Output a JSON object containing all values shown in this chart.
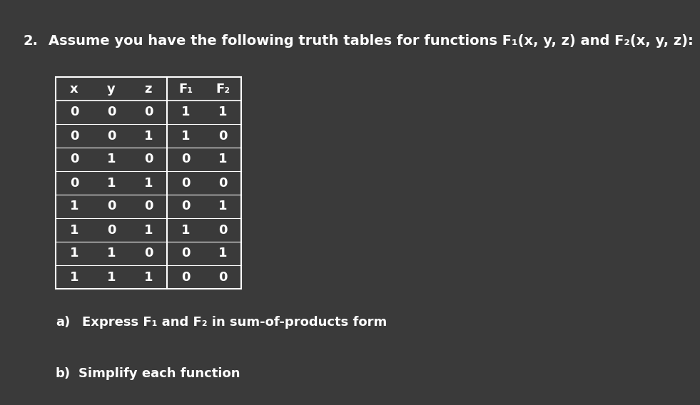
{
  "background_color": "#3a3a3a",
  "text_color": "#ffffff",
  "title_number": "2.",
  "title_text": "Assume you have the following truth tables for functions F₁(x, y, z) and F₂(x, y, z):",
  "headers": [
    "x",
    "y",
    "z",
    "F₁",
    "F₂"
  ],
  "rows": [
    [
      0,
      0,
      0,
      1,
      1
    ],
    [
      0,
      0,
      1,
      1,
      0
    ],
    [
      0,
      1,
      0,
      0,
      1
    ],
    [
      0,
      1,
      1,
      0,
      0
    ],
    [
      1,
      0,
      0,
      0,
      1
    ],
    [
      1,
      0,
      1,
      1,
      0
    ],
    [
      1,
      1,
      0,
      0,
      1
    ],
    [
      1,
      1,
      1,
      0,
      0
    ]
  ],
  "part_a_label": "a)",
  "part_a_text": "Express F₁ and F₂ in sum-of-products form",
  "part_b_label": "b)",
  "part_b_text": "Simplify each function",
  "font_size_title": 14,
  "font_size_table": 13,
  "font_size_parts": 13
}
